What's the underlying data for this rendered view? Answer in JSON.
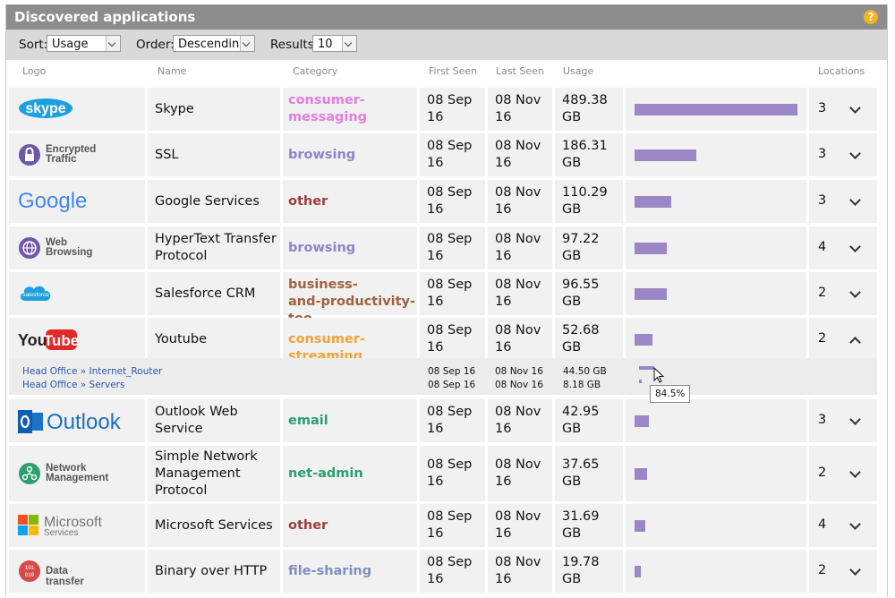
{
  "title": "Discovered applications",
  "help_icon": "?",
  "toolbar": {
    "sort_label": "Sort:",
    "sort_value": "Usage",
    "order_label": "Order:",
    "order_value": "Descending",
    "results_label": "Results:",
    "results_value": "10"
  },
  "columns": {
    "logo": "Logo",
    "name": "Name",
    "category": "Category",
    "first_seen": "First Seen",
    "last_seen": "Last Seen",
    "usage": "Usage",
    "locations": "Locations"
  },
  "colors": {
    "bar": "#9b87c6",
    "consumer_messaging": "#e07fe0",
    "browsing": "#8f84c8",
    "other": "#9e3e3e",
    "business": "#a0623e",
    "consumer_streaming": "#f2a33a",
    "email": "#2a9d7a",
    "net_admin": "#2f9d73",
    "file_sharing": "#7f8fc2"
  },
  "rows": [
    {
      "logo": "skype",
      "logo_text": "skype",
      "name_l1": "Skype",
      "name_l2": "",
      "name_l3": "",
      "cat_l1": "consumer-",
      "cat_l2": "messaging",
      "cat_color": "#e07fe0",
      "fs_l1": "08 Sep",
      "fs_l2": "16",
      "ls_l1": "08 Nov",
      "ls_l2": "16",
      "us_l1": "489.38",
      "us_l2": "GB",
      "usage_fraction": 1.0,
      "locations": "3",
      "expanded": false
    },
    {
      "logo": "encrypted",
      "logo_text": "Encrypted",
      "logo_text2": "Traffic",
      "name_l1": "SSL",
      "name_l2": "",
      "name_l3": "",
      "cat_l1": "browsing",
      "cat_l2": "",
      "cat_color": "#8f84c8",
      "fs_l1": "08 Sep",
      "fs_l2": "16",
      "ls_l1": "08 Nov",
      "ls_l2": "16",
      "us_l1": "186.31",
      "us_l2": "GB",
      "usage_fraction": 0.381,
      "locations": "3",
      "expanded": false
    },
    {
      "logo": "google",
      "logo_text": "Google",
      "name_l1": "Google Services",
      "name_l2": "",
      "name_l3": "",
      "cat_l1": "other",
      "cat_l2": "",
      "cat_color": "#9e3e3e",
      "fs_l1": "08 Sep",
      "fs_l2": "16",
      "ls_l1": "08 Nov",
      "ls_l2": "16",
      "us_l1": "110.29",
      "us_l2": "GB",
      "usage_fraction": 0.225,
      "locations": "3",
      "expanded": false
    },
    {
      "logo": "web",
      "logo_text": "Web",
      "logo_text2": "Browsing",
      "name_l1": "HyperText Transfer",
      "name_l2": "Protocol",
      "name_l3": "",
      "cat_l1": "browsing",
      "cat_l2": "",
      "cat_color": "#8f84c8",
      "fs_l1": "08 Sep",
      "fs_l2": "16",
      "ls_l1": "08 Nov",
      "ls_l2": "16",
      "us_l1": "97.22",
      "us_l2": "GB",
      "usage_fraction": 0.199,
      "locations": "4",
      "expanded": false
    },
    {
      "logo": "salesforce",
      "logo_text": "salesforce",
      "name_l1": "Salesforce CRM",
      "name_l2": "",
      "name_l3": "",
      "cat_l1": "business-",
      "cat_l2": "and-productivity-too",
      "cat_color": "#a0623e",
      "fs_l1": "08 Sep",
      "fs_l2": "16",
      "ls_l1": "08 Nov",
      "ls_l2": "16",
      "us_l1": "96.55",
      "us_l2": "GB",
      "usage_fraction": 0.197,
      "locations": "2",
      "expanded": false
    },
    {
      "logo": "youtube",
      "logo_text": "You",
      "logo_text2": "Tube",
      "name_l1": "Youtube",
      "name_l2": "",
      "name_l3": "",
      "cat_l1": "consumer-streaming",
      "cat_l2": "",
      "cat_color": "#f2a33a",
      "fs_l1": "08 Sep",
      "fs_l2": "16",
      "ls_l1": "08 Nov",
      "ls_l2": "16",
      "us_l1": "52.68",
      "us_l2": "GB",
      "usage_fraction": 0.108,
      "locations": "2",
      "expanded": true
    },
    {
      "logo": "outlook",
      "logo_text": "Outlook",
      "name_l1": "Outlook Web",
      "name_l2": "Service",
      "name_l3": "",
      "cat_l1": "email",
      "cat_l2": "",
      "cat_color": "#2a9d7a",
      "fs_l1": "08 Sep",
      "fs_l2": "16",
      "ls_l1": "08 Nov",
      "ls_l2": "16",
      "us_l1": "42.95",
      "us_l2": "GB",
      "usage_fraction": 0.088,
      "locations": "3",
      "expanded": false
    },
    {
      "logo": "network",
      "logo_text": "Network",
      "logo_text2": "Management",
      "name_l1": "Simple Network",
      "name_l2": "Management",
      "name_l3": "Protocol",
      "cat_l1": "net-admin",
      "cat_l2": "",
      "cat_color": "#2f9d73",
      "fs_l1": "08 Sep",
      "fs_l2": "16",
      "ls_l1": "08 Nov",
      "ls_l2": "16",
      "us_l1": "37.65",
      "us_l2": "GB",
      "usage_fraction": 0.077,
      "locations": "2",
      "expanded": false
    },
    {
      "logo": "microsoft",
      "logo_text": "Microsoft",
      "logo_text2": "Services",
      "name_l1": "Microsoft Services",
      "name_l2": "",
      "name_l3": "",
      "cat_l1": "other",
      "cat_l2": "",
      "cat_color": "#9e3e3e",
      "fs_l1": "08 Sep",
      "fs_l2": "16",
      "ls_l1": "08 Nov",
      "ls_l2": "16",
      "us_l1": "31.69",
      "us_l2": "GB",
      "usage_fraction": 0.065,
      "locations": "4",
      "expanded": false
    },
    {
      "logo": "datatransfer",
      "logo_text": "Data transfer",
      "name_l1": "Binary over HTTP",
      "name_l2": "",
      "name_l3": "",
      "cat_l1": "file-sharing",
      "cat_l2": "",
      "cat_color": "#7f8fc2",
      "fs_l1": "08 Sep",
      "fs_l2": "16",
      "ls_l1": "08 Nov",
      "ls_l2": "16",
      "us_l1": "19.78",
      "us_l2": "GB",
      "usage_fraction": 0.04,
      "locations": "2",
      "expanded": false
    }
  ],
  "youtube_detail": {
    "locations": [
      {
        "path": "Head Office » Internet_Router",
        "first_seen": "08 Sep 16",
        "last_seen": "08 Nov 16",
        "usage": "44.50 GB",
        "fraction": 0.845
      },
      {
        "path": "Head Office » Servers",
        "first_seen": "08 Sep 16",
        "last_seen": "08 Nov 16",
        "usage": "8.18 GB",
        "fraction": 0.155
      }
    ],
    "tooltip": "84.5%"
  }
}
